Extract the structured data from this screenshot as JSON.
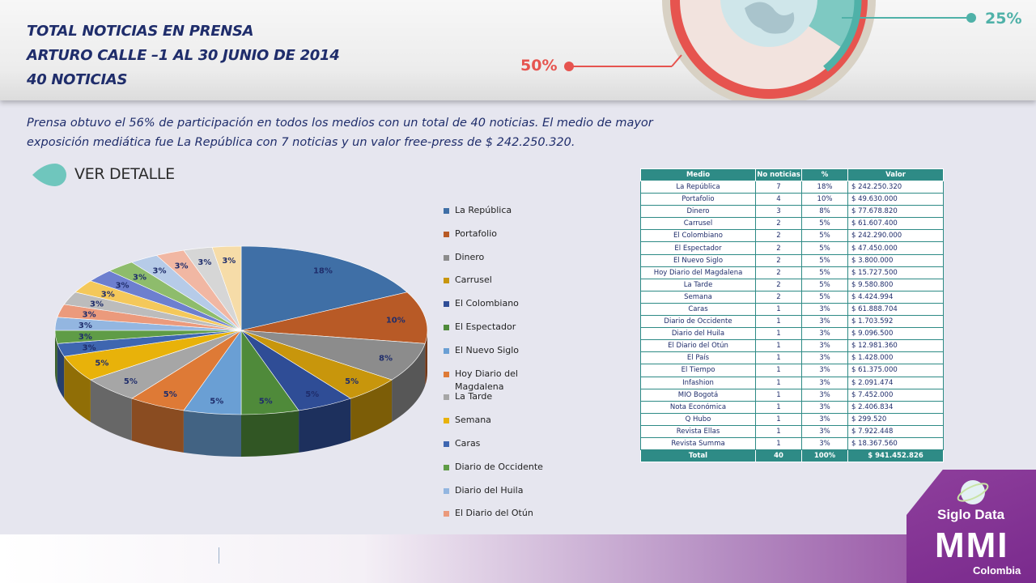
{
  "header": {
    "title_lines": [
      "TOTAL NOTICIAS EN PRENSA",
      "ARTURO CALLE –1 AL 30 JUNIO DE 2014",
      "40 NOTICIAS"
    ],
    "badge_left": "50%",
    "badge_right": "25%"
  },
  "summary": {
    "line1": "Prensa obtuvo el 56% de participación en todos los medios con un total de 40 noticias. El medio de mayor",
    "line2": "exposición mediática fue La República con 7 noticias y un valor free-press de $ 242.250.320."
  },
  "detail_button": {
    "label": "VER DETALLE",
    "icon": "droplet-icon"
  },
  "table": {
    "headers": [
      "Medio",
      "No noticias",
      "%",
      "Valor"
    ],
    "rows": [
      [
        "La República",
        "7",
        "18%",
        "$ 242.250.320"
      ],
      [
        "Portafolio",
        "4",
        "10%",
        "$ 49.630.000"
      ],
      [
        "Dinero",
        "3",
        "8%",
        "$ 77.678.820"
      ],
      [
        "Carrusel",
        "2",
        "5%",
        "$ 61.607.400"
      ],
      [
        "El Colombiano",
        "2",
        "5%",
        "$ 242.290.000"
      ],
      [
        "El Espectador",
        "2",
        "5%",
        "$ 47.450.000"
      ],
      [
        "El Nuevo Siglo",
        "2",
        "5%",
        "$ 3.800.000"
      ],
      [
        "Hoy Diario del Magdalena",
        "2",
        "5%",
        "$ 15.727.500"
      ],
      [
        "La Tarde",
        "2",
        "5%",
        "$ 9.580.800"
      ],
      [
        "Semana",
        "2",
        "5%",
        "$ 4.424.994"
      ],
      [
        "Caras",
        "1",
        "3%",
        "$ 61.888.704"
      ],
      [
        "Diario de Occidente",
        "1",
        "3%",
        "$ 1.703.592"
      ],
      [
        "Diario del Huila",
        "1",
        "3%",
        "$ 9.096.500"
      ],
      [
        "El Diario del Otún",
        "1",
        "3%",
        "$ 12.981.360"
      ],
      [
        "El País",
        "1",
        "3%",
        "$ 1.428.000"
      ],
      [
        "El Tiempo",
        "1",
        "3%",
        "$ 61.375.000"
      ],
      [
        "Infashion",
        "1",
        "3%",
        "$ 2.091.474"
      ],
      [
        "MIO Bogotá",
        "1",
        "3%",
        "$ 7.452.000"
      ],
      [
        "Nota Económica",
        "1",
        "3%",
        "$ 2.406.834"
      ],
      [
        "Q Hubo",
        "1",
        "3%",
        "$ 299.520"
      ],
      [
        "Revista Ellas",
        "1",
        "3%",
        "$ 7.922.448"
      ],
      [
        "Revista Summa",
        "1",
        "3%",
        "$ 18.367.560"
      ]
    ],
    "total": [
      "Total",
      "40",
      "100%",
      "$ 941.452.826"
    ]
  },
  "chart_data": {
    "type": "pie",
    "title": "",
    "categories": [
      "La República",
      "Portafolio",
      "Dinero",
      "Carrusel",
      "El Colombiano",
      "El Espectador",
      "El Nuevo Siglo",
      "Hoy Diario del Magdalena",
      "La Tarde",
      "Semana",
      "Caras",
      "Diario de Occidente",
      "Diario del Huila",
      "El Diario del Otún",
      "El País",
      "El Tiempo",
      "Infashion",
      "MIO Bogotá",
      "Nota Económica",
      "Q Hubo",
      "Revista Ellas",
      "Revista Summa"
    ],
    "values": [
      7,
      4,
      3,
      2,
      2,
      2,
      2,
      2,
      2,
      2,
      1,
      1,
      1,
      1,
      1,
      1,
      1,
      1,
      1,
      1,
      1,
      1
    ],
    "data_labels": [
      "18%",
      "10%",
      "8%",
      "5%",
      "5%",
      "5%",
      "5%",
      "5%",
      "5%",
      "5%",
      "3%",
      "3%",
      "3%",
      "3%",
      "3%",
      "3%",
      "3%",
      "3%",
      "3%",
      "3%",
      "3%",
      "3%"
    ],
    "colors": [
      "#3f6fa6",
      "#b85a26",
      "#8c8c8c",
      "#c8960c",
      "#2f4d96",
      "#4f8a3a",
      "#6a9fd4",
      "#de7a36",
      "#a6a6a6",
      "#e8b20a",
      "#3e66b0",
      "#5f9c46",
      "#93b6e0",
      "#eb9a7c",
      "#bcbcbc",
      "#f4c85a",
      "#6d7fcf",
      "#8ebc6c",
      "#b6cbe8",
      "#f1b7a3",
      "#d6d6d6",
      "#f6dca8"
    ],
    "legend": [
      "La República",
      "Portafolio",
      "Dinero",
      "Carrusel",
      "El Colombiano",
      "El Espectador",
      "El Nuevo Siglo",
      "Hoy Diario del Magdalena",
      "La Tarde",
      "Semana",
      "Caras",
      "Diario de Occidente",
      "Diario del Huila",
      "El Diario del Otún"
    ],
    "legend_position": "right"
  },
  "brand": {
    "name": "Siglo Data",
    "mmi": "MMI",
    "country": "Colombia"
  }
}
